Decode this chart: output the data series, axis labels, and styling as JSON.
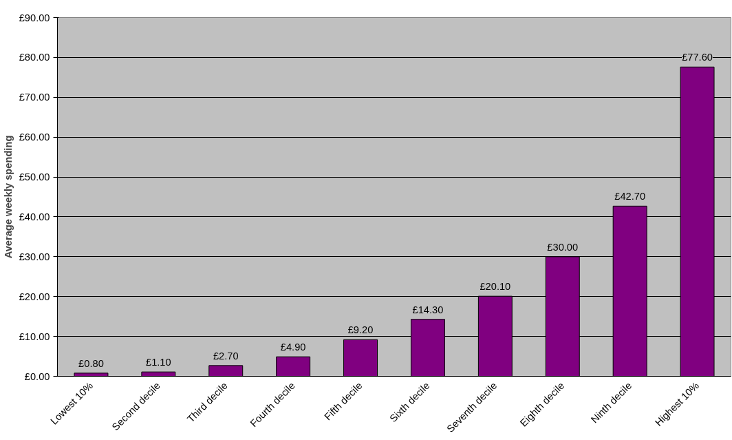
{
  "chart_data": {
    "type": "bar",
    "ylabel": "Average weekly spending",
    "categories": [
      "Lowest 10%",
      "Second decile",
      "Third decile",
      "Fourth decile",
      "Fifth decile",
      "Sixth decile",
      "Seventh decile",
      "Eighth decile",
      "Ninth decile",
      "Highest 10%"
    ],
    "values": [
      0.8,
      1.1,
      2.7,
      4.9,
      9.2,
      14.3,
      20.1,
      30.0,
      42.7,
      77.6
    ],
    "value_labels": [
      "£0.80",
      "£1.10",
      "£2.70",
      "£4.90",
      "£9.20",
      "£14.30",
      "£20.10",
      "£30.00",
      "£42.70",
      "£77.60"
    ],
    "color": "#800080",
    "ylim": [
      0,
      90
    ],
    "yticks": [
      {
        "value": 0,
        "label": "£0.00"
      },
      {
        "value": 10,
        "label": "£10.00"
      },
      {
        "value": 20,
        "label": "£20.00"
      },
      {
        "value": 30,
        "label": "£30.00"
      },
      {
        "value": 40,
        "label": "£40.00"
      },
      {
        "value": 50,
        "label": "£50.00"
      },
      {
        "value": 60,
        "label": "£60.00"
      },
      {
        "value": 70,
        "label": "£70.00"
      },
      {
        "value": 80,
        "label": "£80.00"
      },
      {
        "value": 90,
        "label": "£90.00"
      }
    ],
    "grid": "y"
  }
}
